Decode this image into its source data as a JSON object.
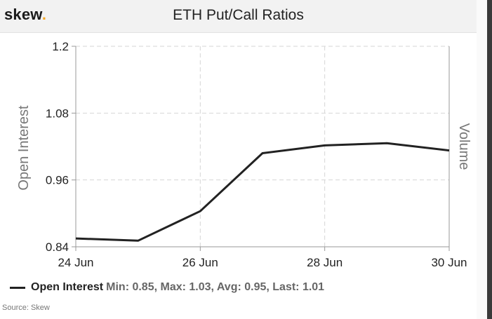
{
  "header": {
    "logo_text": "skew",
    "logo_dot": ".",
    "title": "ETH Put/Call Ratios"
  },
  "legend": {
    "series_name": "Open Interest",
    "stats": "Min: 0.85, Max: 1.03, Avg: 0.95, Last: 1.01"
  },
  "footer": {
    "source": "Source: Skew"
  },
  "colors": {
    "line": "#222222",
    "grid": "#d6d6d6",
    "axis_text": "#222222",
    "axis_label": "#777777",
    "logo_dot": "#f5a623"
  },
  "chart_data": {
    "type": "line",
    "title": "ETH Put/Call Ratios",
    "xlabel": "",
    "ylabel": "Open Interest",
    "y2label": "Volume",
    "x": [
      "2020-06-24",
      "2020-06-25",
      "2020-06-26",
      "2020-06-27",
      "2020-06-28",
      "2020-06-29",
      "2020-06-30"
    ],
    "series": [
      {
        "name": "Open Interest",
        "values": [
          0.855,
          0.851,
          0.904,
          1.008,
          1.022,
          1.026,
          1.013
        ]
      }
    ],
    "ylim": [
      0.84,
      1.2
    ],
    "yticks": [
      "0.84",
      "0.96",
      "1.08",
      "1.2"
    ],
    "yticks_values": [
      0.84,
      0.96,
      1.08,
      1.2
    ],
    "xticks": [
      "24 Jun",
      "26 Jun",
      "28 Jun",
      "30 Jun"
    ],
    "xticks_index": [
      0,
      2,
      4,
      6
    ],
    "grid": true,
    "legend": "bottom-left"
  }
}
